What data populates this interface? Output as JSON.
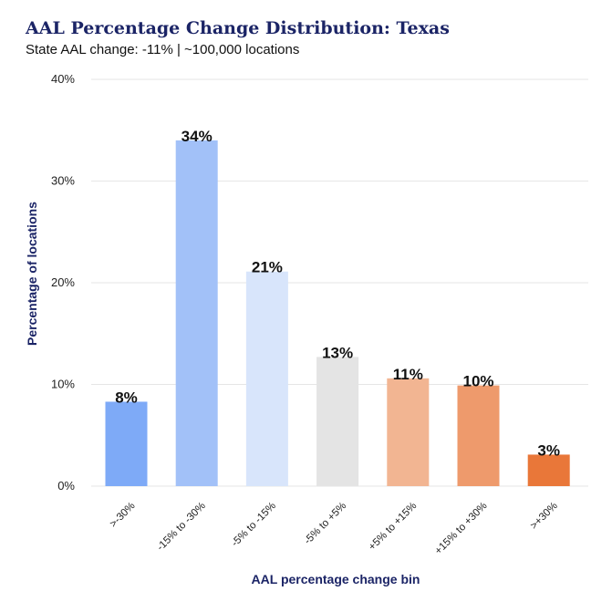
{
  "chart_data": {
    "type": "bar",
    "title": "AAL Percentage Change Distribution: Texas",
    "subtitle": "State AAL change: -11%  |  ~100,000 locations",
    "xlabel": "AAL percentage change bin",
    "ylabel": "Percentage of locations",
    "ylim": [
      0,
      40
    ],
    "yticks": [
      0,
      10,
      20,
      30,
      40
    ],
    "ytick_labels": [
      "0%",
      "10%",
      "20%",
      "30%",
      "40%"
    ],
    "grid": true,
    "categories": [
      ">-30%",
      "-15% to -30%",
      "-5% to -15%",
      "-5% to +5%",
      "+5% to +15%",
      "+15% to +30%",
      ">+30%"
    ],
    "values": [
      8.3,
      34.0,
      21.1,
      12.7,
      10.6,
      9.9,
      3.1
    ],
    "value_labels": [
      "8%",
      "34%",
      "21%",
      "13%",
      "11%",
      "10%",
      "3%"
    ],
    "colors": [
      "#7eaaf7",
      "#a2c1f8",
      "#d8e5fb",
      "#e4e4e4",
      "#f2b592",
      "#ee9a6c",
      "#e97739"
    ]
  }
}
